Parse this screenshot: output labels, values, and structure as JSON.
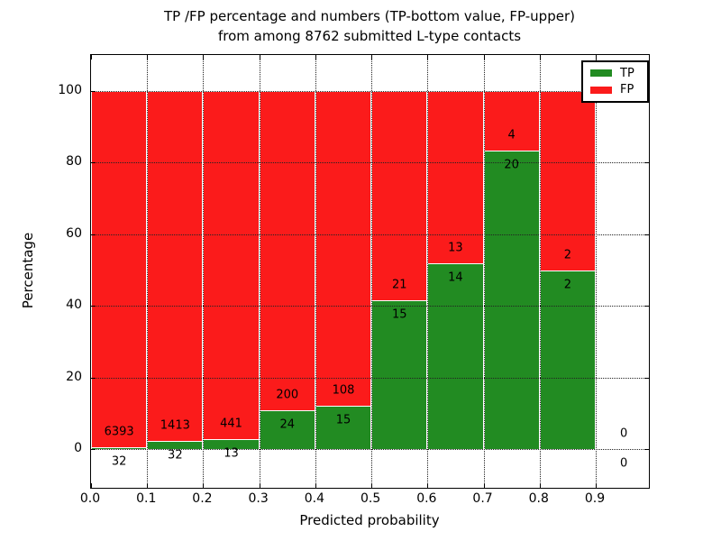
{
  "title_lines": {
    "line1": "TP /FP percentage and numbers (TP-bottom value, FP-upper)",
    "line2": "from among 8762 submitted L-type contacts"
  },
  "colors": {
    "tp_green": "#228b22",
    "fp_red": "#fb1b1b",
    "grid": "#222222",
    "axis": "#000000"
  },
  "chart_data": {
    "type": "bar",
    "stacked": true,
    "normalization": "each bin scaled so TP% + FP% = 100, labels show raw counts (TP bottom, FP upper)",
    "title": "TP /FP percentage and numbers (TP-bottom value, FP-upper) from among 8762 submitted L-type contacts",
    "xlabel": "Predicted probability",
    "ylabel": "Percentage",
    "x_tick_labels": [
      "0.0",
      "0.1",
      "0.2",
      "0.3",
      "0.4",
      "0.5",
      "0.6",
      "0.7",
      "0.8",
      "0.9"
    ],
    "y_ticks": [
      0,
      20,
      40,
      60,
      80,
      100
    ],
    "xlim": [
      0.0,
      1.0
    ],
    "ylim": [
      -11,
      110
    ],
    "grid": "dotted",
    "legend_position": "upper right",
    "total_contacts": 8762,
    "series": [
      {
        "name": "TP",
        "color": "#228b22"
      },
      {
        "name": "FP",
        "color": "#fb1b1b"
      }
    ],
    "bins": [
      {
        "x0": 0.0,
        "x1": 0.1,
        "tp": 32,
        "fp": 6393,
        "tp_pct": 0.5,
        "fp_pct": 99.5
      },
      {
        "x0": 0.1,
        "x1": 0.2,
        "tp": 32,
        "fp": 1413,
        "tp_pct": 2.2,
        "fp_pct": 97.8
      },
      {
        "x0": 0.2,
        "x1": 0.3,
        "tp": 13,
        "fp": 441,
        "tp_pct": 2.9,
        "fp_pct": 97.1
      },
      {
        "x0": 0.3,
        "x1": 0.4,
        "tp": 24,
        "fp": 200,
        "tp_pct": 10.7,
        "fp_pct": 89.3
      },
      {
        "x0": 0.4,
        "x1": 0.5,
        "tp": 15,
        "fp": 108,
        "tp_pct": 12.2,
        "fp_pct": 87.8
      },
      {
        "x0": 0.5,
        "x1": 0.6,
        "tp": 15,
        "fp": 21,
        "tp_pct": 41.7,
        "fp_pct": 58.3
      },
      {
        "x0": 0.6,
        "x1": 0.7,
        "tp": 14,
        "fp": 13,
        "tp_pct": 51.9,
        "fp_pct": 48.1
      },
      {
        "x0": 0.7,
        "x1": 0.8,
        "tp": 20,
        "fp": 4,
        "tp_pct": 83.3,
        "fp_pct": 16.7
      },
      {
        "x0": 0.8,
        "x1": 0.9,
        "tp": 2,
        "fp": 2,
        "tp_pct": 50.0,
        "fp_pct": 50.0
      },
      {
        "x0": 0.9,
        "x1": 1.0,
        "tp": 0,
        "fp": 0,
        "tp_pct": null,
        "fp_pct": null
      }
    ]
  }
}
